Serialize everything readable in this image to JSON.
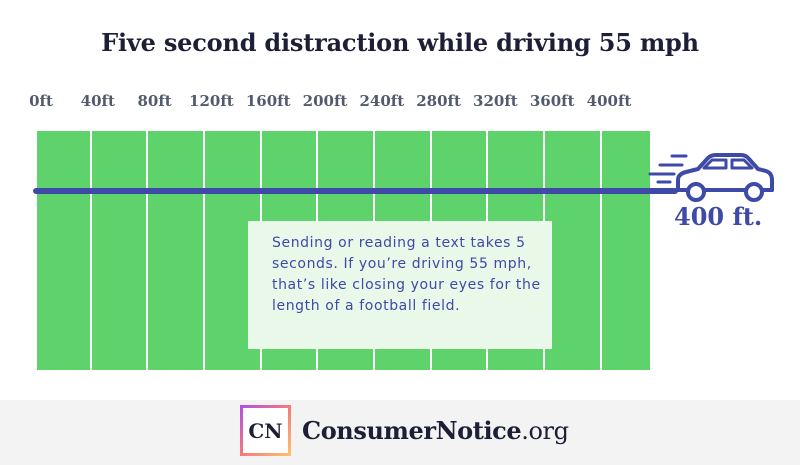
{
  "title": "Five second distraction while driving 55 mph",
  "scale_ticks": [
    "0ft",
    "40ft",
    "80ft",
    "120ft",
    "160ft",
    "200ft",
    "240ft",
    "280ft",
    "320ft",
    "360ft",
    "400ft"
  ],
  "distance_label": "400 ft.",
  "callout": "Sending or reading a text takes 5 seconds. If you’re driving 55 mph, that’s like closing your eyes for the length of a football field.",
  "footer": {
    "logo_mark": "CN",
    "brand_name": "ConsumerNotice",
    "brand_tld": ".org"
  },
  "icons": {
    "car": "car-icon"
  },
  "colors": {
    "field": "#5ed36c",
    "accent": "#3d4aa8",
    "callout_bg": "#eaf8ea",
    "footer_bg": "#f3f3f3"
  }
}
